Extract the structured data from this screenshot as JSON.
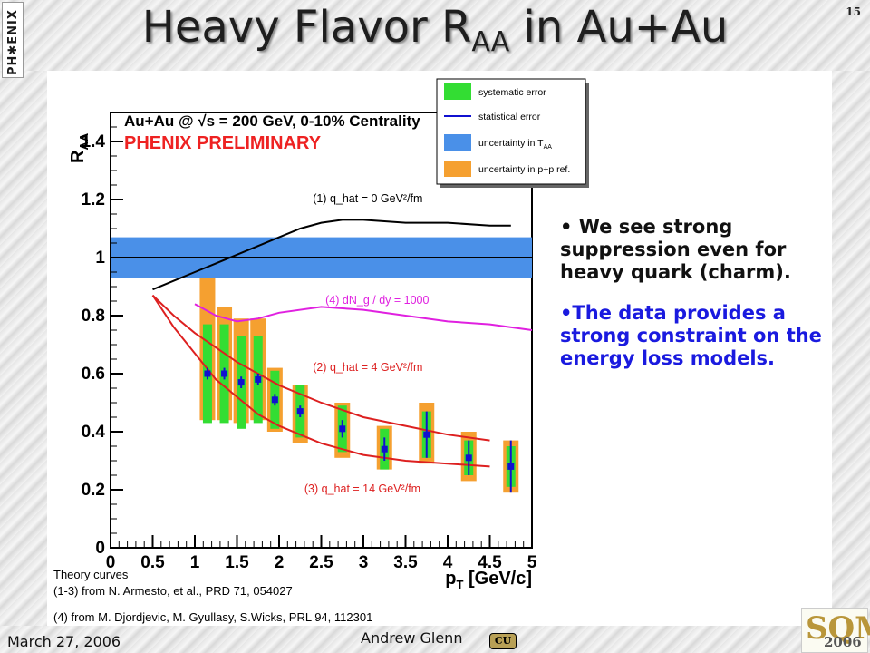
{
  "slide": {
    "number": "15",
    "title_main": "Heavy Flavor R",
    "title_sub": "AA",
    "title_tail": " in Au+Au",
    "logo_text": "PH✱ENIX",
    "bullets": [
      "• We see strong suppression even for heavy quark (charm).",
      "•The data provides a strong constraint on the energy loss models."
    ],
    "footer_date": "March 27, 2006",
    "footer_author": "Andrew Glenn",
    "cu_logo_text": "CU",
    "sqm_logo_text": "SQM",
    "sqm_logo_year": "2006"
  },
  "chart_data": {
    "type": "scatter",
    "title": "Au+Au @ √s = 200 GeV, 0-10% Centrality",
    "subtitle": "PHENIX PRELIMINARY",
    "xlabel_main": "p",
    "xlabel_sub": "T",
    "xlabel_tail": " [GeV/c]",
    "ylabel_main": "R",
    "ylabel_sub": "AA",
    "xlim": [
      0,
      5
    ],
    "ylim": [
      0,
      1.5
    ],
    "xticks": [
      "0",
      "0.5",
      "1",
      "1.5",
      "2",
      "2.5",
      "3",
      "3.5",
      "4",
      "4.5",
      "5"
    ],
    "xtick_values": [
      0,
      0.5,
      1,
      1.5,
      2,
      2.5,
      3,
      3.5,
      4,
      4.5,
      5
    ],
    "yticks": [
      "0",
      "0.2",
      "0.4",
      "0.6",
      "0.8",
      "1",
      "1.2",
      "1.4"
    ],
    "ytick_values": [
      0,
      0.2,
      0.4,
      0.6,
      0.8,
      1.0,
      1.2,
      1.4
    ],
    "grid": false,
    "colors": {
      "data": "#1010d0",
      "syst": "#33dd33",
      "pp": "#f5a030",
      "taa": "#4a90e8",
      "curve1": "#000000",
      "curve2": "#dd2020",
      "curve3": "#dd2020",
      "curve4": "#e020e0",
      "title": "#000000",
      "prelim": "#ee2222"
    },
    "taa_band": {
      "y": 1.0,
      "low": 0.93,
      "high": 1.07
    },
    "points": [
      {
        "x": 1.15,
        "y": 0.6,
        "stat": 0.02,
        "syst": 0.17,
        "pp_low": 0.44,
        "pp_high": 0.93
      },
      {
        "x": 1.35,
        "y": 0.6,
        "stat": 0.02,
        "syst": 0.17,
        "pp_low": 0.44,
        "pp_high": 0.83
      },
      {
        "x": 1.55,
        "y": 0.57,
        "stat": 0.02,
        "syst": 0.16,
        "pp_low": 0.43,
        "pp_high": 0.79
      },
      {
        "x": 1.75,
        "y": 0.58,
        "stat": 0.02,
        "syst": 0.15,
        "pp_low": 0.44,
        "pp_high": 0.79
      },
      {
        "x": 1.95,
        "y": 0.51,
        "stat": 0.02,
        "syst": 0.1,
        "pp_low": 0.4,
        "pp_high": 0.62
      },
      {
        "x": 2.25,
        "y": 0.47,
        "stat": 0.02,
        "syst": 0.09,
        "pp_low": 0.36,
        "pp_high": 0.56
      },
      {
        "x": 2.75,
        "y": 0.41,
        "stat": 0.03,
        "syst": 0.08,
        "pp_low": 0.31,
        "pp_high": 0.5
      },
      {
        "x": 3.25,
        "y": 0.34,
        "stat": 0.04,
        "syst": 0.07,
        "pp_low": 0.27,
        "pp_high": 0.42
      },
      {
        "x": 3.75,
        "y": 0.39,
        "stat": 0.08,
        "syst": 0.08,
        "pp_low": 0.29,
        "pp_high": 0.5
      },
      {
        "x": 4.25,
        "y": 0.31,
        "stat": 0.06,
        "syst": 0.06,
        "pp_low": 0.23,
        "pp_high": 0.4
      },
      {
        "x": 4.75,
        "y": 0.28,
        "stat": 0.09,
        "syst": 0.07,
        "pp_low": 0.19,
        "pp_high": 0.37
      }
    ],
    "curves": [
      {
        "name": "curve1",
        "label": "(1) q_hat = 0 GeV²/fm",
        "label_x": 2.4,
        "label_y": 1.19,
        "x": [
          0.5,
          0.75,
          1.0,
          1.25,
          1.5,
          1.75,
          2.0,
          2.25,
          2.5,
          2.75,
          3.0,
          3.5,
          4.0,
          4.5,
          4.75
        ],
        "y": [
          0.89,
          0.92,
          0.95,
          0.98,
          1.01,
          1.04,
          1.07,
          1.1,
          1.12,
          1.13,
          1.13,
          1.12,
          1.12,
          1.11,
          1.11
        ]
      },
      {
        "name": "curve4",
        "label": "(4) dN_g / dy = 1000",
        "label_x": 2.55,
        "label_y": 0.84,
        "x": [
          1.0,
          1.25,
          1.5,
          1.75,
          2.0,
          2.5,
          3.0,
          3.5,
          4.0,
          4.5,
          5.0
        ],
        "y": [
          0.84,
          0.8,
          0.78,
          0.79,
          0.81,
          0.83,
          0.82,
          0.8,
          0.78,
          0.77,
          0.75
        ]
      },
      {
        "name": "curve2",
        "label": "(2) q_hat = 4 GeV²/fm",
        "label_x": 2.4,
        "label_y": 0.61,
        "x": [
          0.5,
          0.75,
          1.0,
          1.25,
          1.5,
          1.75,
          2.0,
          2.5,
          3.0,
          3.5,
          4.0,
          4.5
        ],
        "y": [
          0.87,
          0.8,
          0.74,
          0.69,
          0.64,
          0.6,
          0.56,
          0.5,
          0.45,
          0.42,
          0.39,
          0.37
        ]
      },
      {
        "name": "curve3",
        "label": "(3) q_hat = 14 GeV²/fm",
        "label_x": 2.3,
        "label_y": 0.19,
        "x": [
          0.5,
          0.75,
          1.0,
          1.25,
          1.5,
          1.75,
          2.0,
          2.5,
          3.0,
          3.5,
          4.0,
          4.5
        ],
        "y": [
          0.87,
          0.76,
          0.67,
          0.58,
          0.52,
          0.46,
          0.42,
          0.36,
          0.32,
          0.3,
          0.29,
          0.28
        ]
      }
    ],
    "legend": {
      "position": "top-right",
      "entries": [
        {
          "key": "syst",
          "label": "systematic error"
        },
        {
          "key": "stat",
          "label": "statistical error"
        },
        {
          "key": "taa",
          "label": "uncertainty in T",
          "sub": "AA"
        },
        {
          "key": "pp",
          "label": "uncertainty in p+p ref."
        }
      ]
    },
    "notes": [
      "Theory curves",
      "(1-3) from N. Armesto, et al., PRD 71, 054027",
      "(4) from M. Djordjevic, M. Gyullasy, S.Wicks, PRL 94, 112301"
    ]
  }
}
